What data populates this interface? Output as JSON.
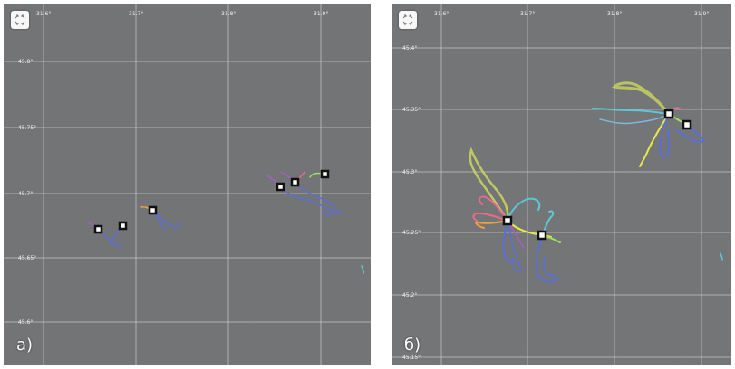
{
  "panels": [
    {
      "label": "а)",
      "lon_ticks": [
        "31.6°",
        "31.7°",
        "31.8°",
        "31.9°"
      ],
      "lat_ticks": [
        "45.8°",
        "45.75°",
        "45.7°",
        "45.65°",
        "45.6°"
      ],
      "fullscreen_icon": "expand-icon"
    },
    {
      "label": "б)",
      "lon_ticks": [
        "31.6°",
        "31.7°",
        "31.8°",
        "31.9°"
      ],
      "lat_ticks": [
        "45.4°",
        "45.35°",
        "45.3°",
        "45.25°",
        "45.2°",
        "45.15°"
      ],
      "fullscreen_icon": "expand-icon"
    }
  ],
  "colors": {
    "background": "#6a6b6d",
    "grid": "#c9c9c9",
    "track_blue": "#5a6fd6",
    "track_violet": "#a85cc8",
    "track_yellow": "#e8e84a",
    "track_green": "#9edc62",
    "track_cyan": "#5cc8d6",
    "track_pink": "#e86a8a",
    "track_orange": "#f0a040"
  }
}
